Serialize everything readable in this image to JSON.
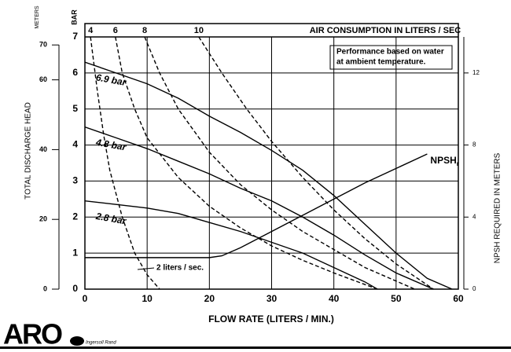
{
  "chart_data": {
    "type": "line",
    "x_label": "FLOW RATE (LITERS / MIN.)",
    "y_label": "TOTAL DISCHARGE HEAD",
    "y_unit_label": "BAR",
    "meters_label": "METERS",
    "y2_label": "NPSH REQUIRED IN METERS",
    "top_axis_label": "AIR CONSUMPTION IN LITERS / SEC",
    "xlim": [
      0,
      60
    ],
    "xticks": [
      0,
      10,
      20,
      30,
      40,
      50,
      60
    ],
    "ylim": [
      0,
      7
    ],
    "yticks": [
      0,
      1,
      2,
      3,
      4,
      5,
      6,
      7
    ],
    "meters_lim": [
      0,
      72.3
    ],
    "meters_ticks": [
      0,
      20,
      40,
      60,
      70
    ],
    "y2lim": [
      0,
      14
    ],
    "y2ticks": [
      0,
      4,
      8,
      12
    ],
    "grid": true,
    "series": [
      {
        "name": "6.9 bar",
        "style": "solid",
        "color": "#000000",
        "x": [
          0,
          5,
          10,
          15,
          20,
          25,
          30,
          35,
          40,
          45,
          50,
          55,
          59
        ],
        "values": [
          6.3,
          6.0,
          5.7,
          5.3,
          4.8,
          4.35,
          3.85,
          3.3,
          2.6,
          1.8,
          1.0,
          0.3,
          0
        ]
      },
      {
        "name": "4.8 bar",
        "style": "solid",
        "color": "#000000",
        "x": [
          0,
          5,
          10,
          15,
          20,
          25,
          30,
          35,
          40,
          45,
          50,
          56
        ],
        "values": [
          4.5,
          4.2,
          3.9,
          3.55,
          3.2,
          2.8,
          2.45,
          2.0,
          1.5,
          0.95,
          0.45,
          0
        ]
      },
      {
        "name": "2.8 bar",
        "style": "solid",
        "color": "#000000",
        "x": [
          0,
          5,
          10,
          15,
          20,
          25,
          30,
          35,
          40,
          45,
          47
        ],
        "values": [
          2.45,
          2.35,
          2.25,
          2.1,
          1.85,
          1.6,
          1.3,
          1.0,
          0.6,
          0.2,
          0
        ]
      },
      {
        "name": "4",
        "style": "dashed",
        "color": "#000000",
        "x": [
          0.9,
          2,
          3,
          4,
          6,
          8,
          10,
          12
        ],
        "values": [
          7,
          5.5,
          4.3,
          3.3,
          2.0,
          1.0,
          0.4,
          0
        ]
      },
      {
        "name": "6",
        "style": "dashed",
        "color": "#000000",
        "x": [
          4.9,
          6,
          8,
          10,
          15,
          20,
          25,
          30,
          35,
          40,
          47
        ],
        "values": [
          7,
          6,
          5,
          4.2,
          3.1,
          2.3,
          1.7,
          1.2,
          0.8,
          0.45,
          0
        ]
      },
      {
        "name": "8",
        "style": "dashed",
        "color": "#000000",
        "x": [
          9.6,
          12,
          15,
          20,
          25,
          30,
          35,
          40,
          45,
          53
        ],
        "values": [
          7,
          6,
          5,
          3.8,
          2.9,
          2.2,
          1.6,
          1.1,
          0.6,
          0
        ]
      },
      {
        "name": "10",
        "style": "dashed",
        "color": "#000000",
        "x": [
          18.3,
          22,
          26,
          30,
          35,
          40,
          45,
          50,
          56
        ],
        "values": [
          7,
          6,
          5,
          4.1,
          3.1,
          2.2,
          1.4,
          0.7,
          0
        ]
      },
      {
        "name": "NPSH",
        "name_subscript": "r",
        "style": "solid",
        "axis": "y2",
        "color": "#000000",
        "x": [
          0,
          20,
          22,
          25,
          30,
          35,
          40,
          45,
          50,
          55
        ],
        "values": [
          1.75,
          1.75,
          1.85,
          2.3,
          3.2,
          4.1,
          5.0,
          5.9,
          6.7,
          7.5
        ]
      }
    ],
    "note": [
      "Performance based on water",
      "at ambient temperature."
    ],
    "air_annotation": "2 liters / sec."
  },
  "brand": {
    "logo": "ARO",
    "company": "Ingersoll Rand"
  }
}
